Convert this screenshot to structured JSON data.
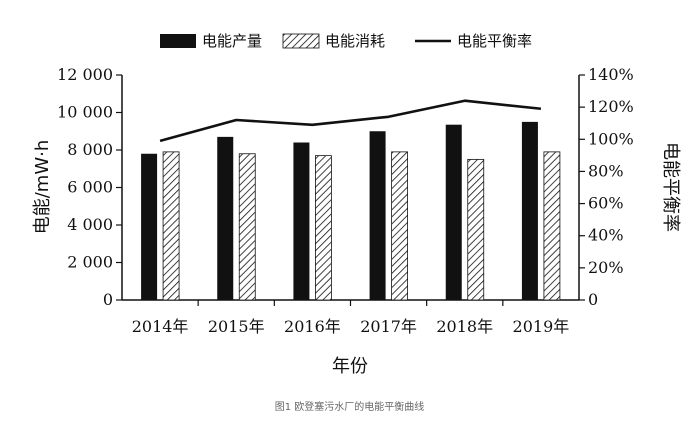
{
  "chart_data": {
    "type": "bar",
    "categories": [
      "2014年",
      "2015年",
      "2016年",
      "2017年",
      "2018年",
      "2019年"
    ],
    "series": [
      {
        "name": "电能产量",
        "type": "bar",
        "axis": "left",
        "color": "#111111",
        "pattern": "solid",
        "values": [
          7800,
          8700,
          8400,
          9000,
          9350,
          9500
        ]
      },
      {
        "name": "电能消耗",
        "type": "bar",
        "axis": "left",
        "color": "#111111",
        "pattern": "diagonal-hatch",
        "values": [
          7900,
          7800,
          7700,
          7900,
          7500,
          7900
        ]
      },
      {
        "name": "电能平衡率",
        "type": "line",
        "axis": "right",
        "color": "#111111",
        "unit": "%",
        "values": [
          99,
          112,
          109,
          114,
          124,
          119
        ]
      }
    ],
    "xlabel": "年份",
    "ylabel": "电能/mW·h",
    "y2label": "电能平衡率",
    "ylim": [
      0,
      12000
    ],
    "y2lim": [
      0,
      140
    ],
    "yticks": [
      "0",
      "2 000",
      "4 000",
      "6 000",
      "8 000",
      "10 000",
      "12 000"
    ],
    "y2ticks": [
      "0",
      "20%",
      "40%",
      "60%",
      "80%",
      "100%",
      "120%",
      "140%"
    ],
    "legend_position": "top",
    "grid": false
  },
  "caption": "图1 欧登塞污水厂的电能平衡曲线"
}
